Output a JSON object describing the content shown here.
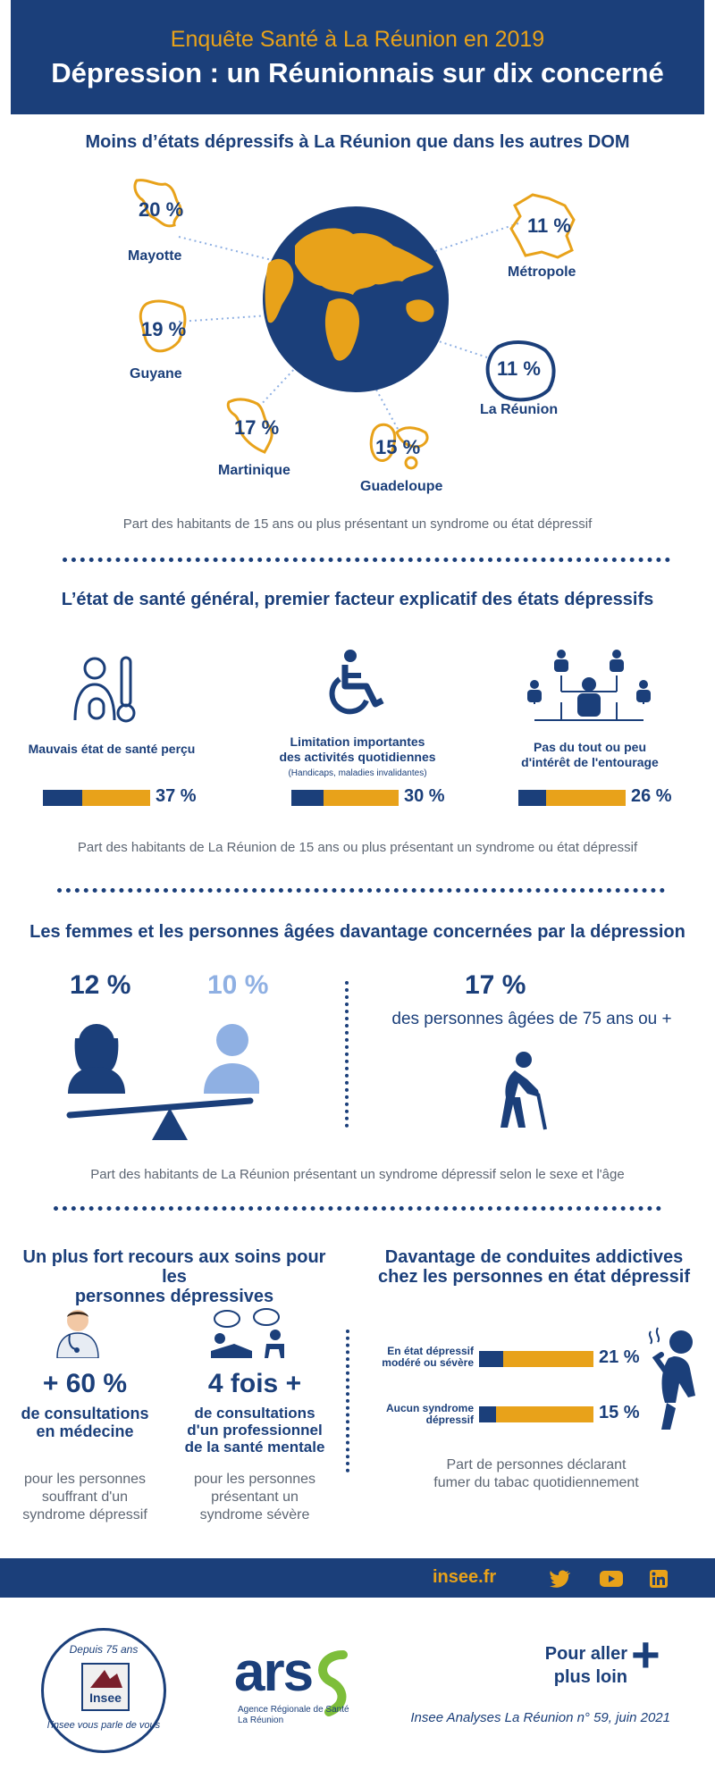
{
  "header": {
    "subtitle": "Enquête Santé à La Réunion en 2019",
    "title": "Dépression : un Réunionnais sur dix concerné"
  },
  "section1": {
    "title": "Moins d’états dépressifs à La Réunion que dans les autres DOM",
    "regions": {
      "mayotte": {
        "pct": "20 %",
        "name": "Mayotte"
      },
      "metropole": {
        "pct": "11 %",
        "name": "Métropole"
      },
      "guyane": {
        "pct": "19 %",
        "name": "Guyane"
      },
      "reunion": {
        "pct": "11 %",
        "name": "La Réunion"
      },
      "martinique": {
        "pct": "17 %",
        "name": "Martinique"
      },
      "guadeloupe": {
        "pct": "15 %",
        "name": "Guadeloupe"
      }
    },
    "caption": "Part des habitants de 15 ans ou plus présentant un syndrome ou état dépressif"
  },
  "section2": {
    "title": "L’état de santé général, premier facteur explicatif des états dépressifs",
    "items": [
      {
        "label": "Mauvais état de santé perçu",
        "note": "",
        "value": "37 %",
        "share": 0.37
      },
      {
        "label_line1": "Limitation importantes",
        "label_line2": "des activités quotidiennes",
        "note": "(Handicaps, maladies invalidantes)",
        "value": "30 %",
        "share": 0.3
      },
      {
        "label_line1": "Pas du tout ou peu",
        "label_line2": "d'intérêt de l'entourage",
        "value": "26 %",
        "share": 0.26
      }
    ],
    "caption": "Part des habitants de La Réunion de 15 ans ou plus présentant un syndrome ou état dépressif"
  },
  "section3": {
    "title": "Les femmes et les personnes âgées davantage concernées par la dépression",
    "women_pct": "12 %",
    "men_pct": "10 %",
    "elderly_pct": "17 %",
    "elderly_label": "des personnes âgées de 75 ans ou +",
    "caption": "Part des habitants de La Réunion présentant un syndrome dépressif selon le sexe et l'âge"
  },
  "section4": {
    "title_line1": "Un plus fort recours aux soins pour les",
    "title_line2": "personnes dépressives",
    "medical": {
      "value": "+ 60 %",
      "label_line1": "de consultations",
      "label_line2": "en médecine",
      "desc_line1": "pour les personnes",
      "desc_line2": "souffrant d'un",
      "desc_line3": "syndrome dépressif"
    },
    "mental": {
      "value": "4 fois +",
      "label_line1": "de consultations",
      "label_line2": "d'un professionnel",
      "label_line3": "de la santé mentale",
      "desc_line1": "pour les personnes",
      "desc_line2": "présentant un",
      "desc_line3": "syndrome sévère"
    }
  },
  "section5": {
    "title_line1": "Davantage de conduites addictives",
    "title_line2": "chez les personnes en état dépressif",
    "rows": [
      {
        "label_line1": "En état dépressif",
        "label_line2": "modéré ou sévère",
        "value": "21 %",
        "share": 0.21
      },
      {
        "label_line1": "Aucun syndrome",
        "label_line2": "dépressif",
        "value": "15 %",
        "share": 0.15
      }
    ],
    "caption_line1": "Part de personnes déclarant",
    "caption_line2": "fumer du tabac quotidiennement"
  },
  "footer": {
    "site": "insee.fr",
    "social": [
      "twitter-icon",
      "youtube-icon",
      "linkedin-icon"
    ],
    "badge_top": "Depuis 75 ans",
    "badge_logo": "Insee",
    "badge_bottom": "l'insee vous parle de vous",
    "ars_logo": "ars",
    "ars_line1": "Agence Régionale de Santé",
    "ars_line2": "La Réunion",
    "more_line1": "Pour aller",
    "more_line2": "plus loin",
    "more_plus": "+",
    "reference": "Insee Analyses La Réunion n° 59, juin 2021"
  },
  "colors": {
    "navy": "#1b3f7a",
    "orange": "#e8a21a",
    "light_blue": "#8fb0e3",
    "gray": "#5d6673"
  }
}
